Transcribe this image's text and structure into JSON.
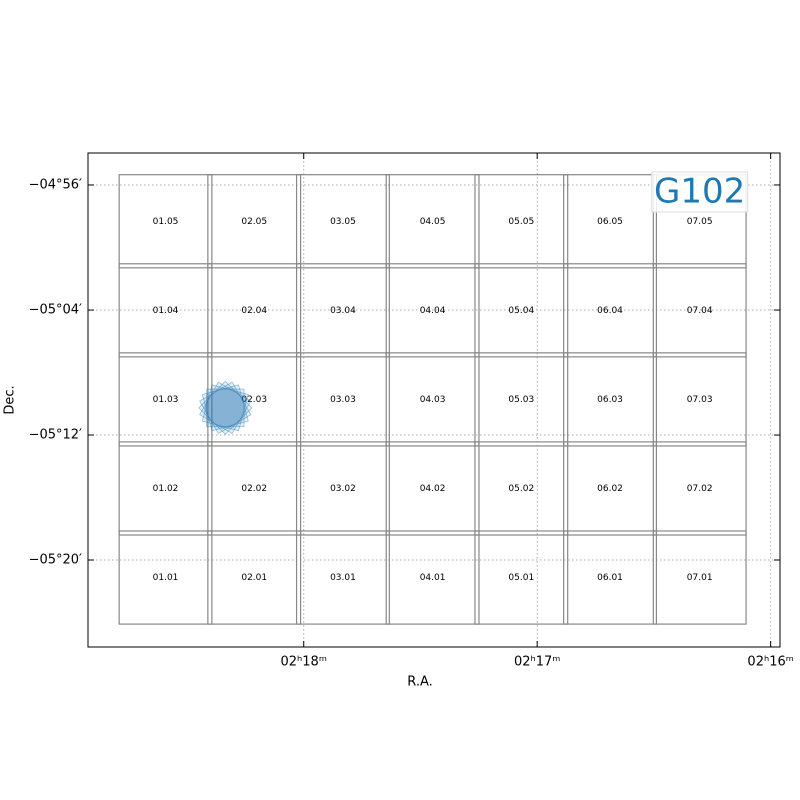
{
  "chart_data": {
    "type": "footprint",
    "label": "G102",
    "xlabel": "R.A.",
    "ylabel": "Dec.",
    "xlim": [
      34.731,
      33.99
    ],
    "ylim": [
      -5.4261,
      -4.8992
    ],
    "xticks": [
      {
        "value": 34.5,
        "label": "02ʰ18ᵐ"
      },
      {
        "value": 34.25,
        "label": "02ʰ17ᵐ"
      },
      {
        "value": 34.0,
        "label": "02ʰ16ᵐ"
      }
    ],
    "yticks": [
      {
        "value": -4.9333,
        "label": "−04°56′"
      },
      {
        "value": -5.0667,
        "label": "−05°04′"
      },
      {
        "value": -5.2,
        "label": "−05°12′"
      },
      {
        "value": -5.3333,
        "label": "−05°20′"
      }
    ],
    "grid": true,
    "tile_color": "#888888",
    "tile_size": 0.0993,
    "tiles": [
      {
        "label": "01.05",
        "ra": 34.648,
        "dec": -4.972
      },
      {
        "label": "02.05",
        "ra": 34.553,
        "dec": -4.972
      },
      {
        "label": "03.05",
        "ra": 34.458,
        "dec": -4.972
      },
      {
        "label": "04.05",
        "ra": 34.362,
        "dec": -4.972
      },
      {
        "label": "05.05",
        "ra": 34.267,
        "dec": -4.972
      },
      {
        "label": "06.05",
        "ra": 34.172,
        "dec": -4.972
      },
      {
        "label": "07.05",
        "ra": 34.076,
        "dec": -4.972
      },
      {
        "label": "01.04",
        "ra": 34.648,
        "dec": -5.067
      },
      {
        "label": "02.04",
        "ra": 34.553,
        "dec": -5.067
      },
      {
        "label": "03.04",
        "ra": 34.458,
        "dec": -5.067
      },
      {
        "label": "04.04",
        "ra": 34.362,
        "dec": -5.067
      },
      {
        "label": "05.04",
        "ra": 34.267,
        "dec": -5.067
      },
      {
        "label": "06.04",
        "ra": 34.172,
        "dec": -5.067
      },
      {
        "label": "07.04",
        "ra": 34.076,
        "dec": -5.067
      },
      {
        "label": "01.03",
        "ra": 34.648,
        "dec": -5.162
      },
      {
        "label": "02.03",
        "ra": 34.553,
        "dec": -5.162
      },
      {
        "label": "03.03",
        "ra": 34.458,
        "dec": -5.162
      },
      {
        "label": "04.03",
        "ra": 34.362,
        "dec": -5.162
      },
      {
        "label": "05.03",
        "ra": 34.267,
        "dec": -5.162
      },
      {
        "label": "06.03",
        "ra": 34.172,
        "dec": -5.162
      },
      {
        "label": "07.03",
        "ra": 34.076,
        "dec": -5.162
      },
      {
        "label": "01.02",
        "ra": 34.648,
        "dec": -5.257
      },
      {
        "label": "02.02",
        "ra": 34.553,
        "dec": -5.257
      },
      {
        "label": "03.02",
        "ra": 34.458,
        "dec": -5.257
      },
      {
        "label": "04.02",
        "ra": 34.362,
        "dec": -5.257
      },
      {
        "label": "05.02",
        "ra": 34.267,
        "dec": -5.257
      },
      {
        "label": "06.02",
        "ra": 34.172,
        "dec": -5.257
      },
      {
        "label": "07.02",
        "ra": 34.076,
        "dec": -5.257
      },
      {
        "label": "01.01",
        "ra": 34.648,
        "dec": -5.352
      },
      {
        "label": "02.01",
        "ra": 34.553,
        "dec": -5.352
      },
      {
        "label": "03.01",
        "ra": 34.458,
        "dec": -5.352
      },
      {
        "label": "04.01",
        "ra": 34.362,
        "dec": -5.352
      },
      {
        "label": "05.01",
        "ra": 34.267,
        "dec": -5.352
      },
      {
        "label": "06.01",
        "ra": 34.172,
        "dec": -5.352
      },
      {
        "label": "07.01",
        "ra": 34.076,
        "dec": -5.352
      }
    ],
    "pointing": {
      "ra": 34.584,
      "dec": -5.171,
      "size": 0.04,
      "color": "#1f77b4"
    }
  }
}
